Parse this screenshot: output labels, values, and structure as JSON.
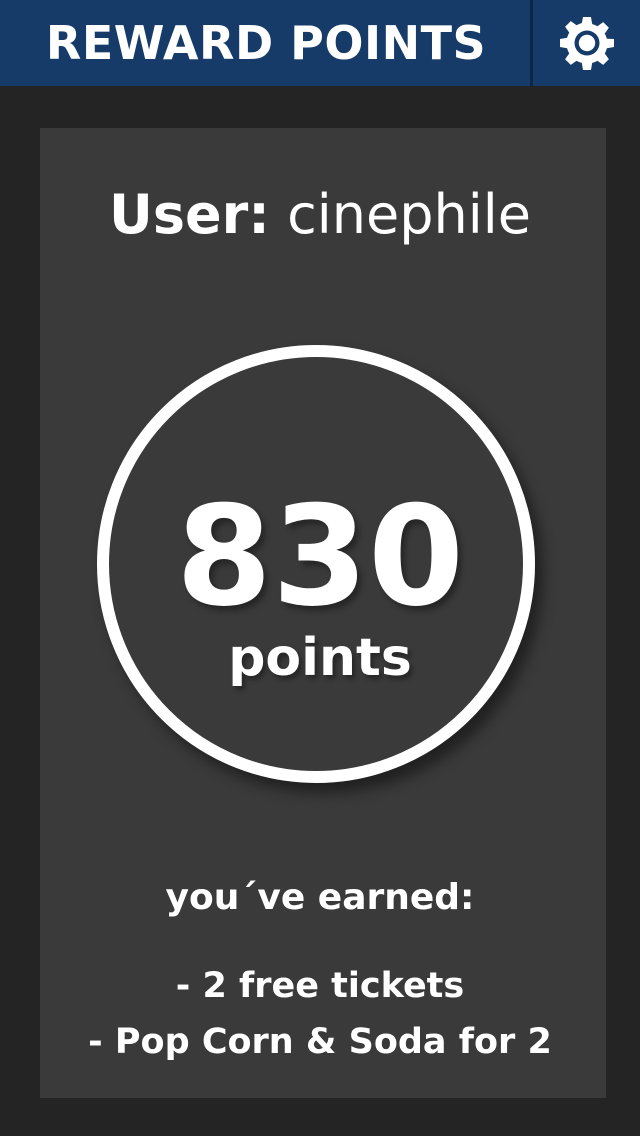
{
  "header": {
    "title": "REWARD POINTS",
    "settings_icon": "gear-icon",
    "background_color": "#173b68"
  },
  "user": {
    "label": "User:",
    "name": "cinephile"
  },
  "points": {
    "value": "830",
    "unit": "points"
  },
  "earned": {
    "heading": "you´ve earned:",
    "rewards": [
      "- 2 free tickets",
      "- Pop Corn & Soda for 2"
    ]
  },
  "colors": {
    "page_background": "#242424",
    "card_background": "#3a3a3a",
    "text": "#ffffff"
  }
}
